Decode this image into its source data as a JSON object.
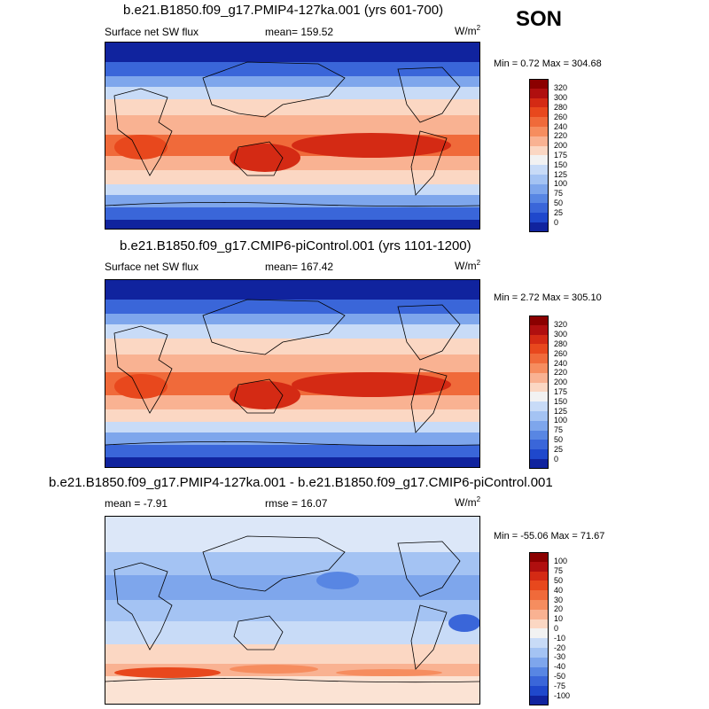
{
  "season": "SON",
  "panels": [
    {
      "title": "b.e21.B1850.f09_g17.PMIP4-127ka.001 (yrs 601-700)",
      "left_label": "Surface net SW flux",
      "center_label": "mean=  159.52",
      "units": "W/m",
      "units_sup": "2",
      "minmax": "Min =   0.72 Max = 304.68",
      "labels": [
        "320",
        "300",
        "280",
        "260",
        "240",
        "220",
        "200",
        "175",
        "150",
        "125",
        "100",
        "75",
        "50",
        "25",
        "0"
      ],
      "colors": [
        "#8b0000",
        "#b00f0f",
        "#d42a14",
        "#e8481d",
        "#f06a3a",
        "#f68d5f",
        "#f9b292",
        "#fbd7c3",
        "#f2f2f2",
        "#c8dbf7",
        "#a4c3f3",
        "#7ea6ec",
        "#5886e3",
        "#3a66d9",
        "#1f48cc",
        "#10239e"
      ]
    },
    {
      "title": "b.e21.B1850.f09_g17.CMIP6-piControl.001 (yrs 1101-1200)",
      "left_label": "Surface net SW flux",
      "center_label": "mean=  167.42",
      "units": "W/m",
      "units_sup": "2",
      "minmax": "Min =   2.72 Max = 305.10",
      "labels": [
        "320",
        "300",
        "280",
        "260",
        "240",
        "220",
        "200",
        "175",
        "150",
        "125",
        "100",
        "75",
        "50",
        "25",
        "0"
      ],
      "colors": [
        "#8b0000",
        "#b00f0f",
        "#d42a14",
        "#e8481d",
        "#f06a3a",
        "#f68d5f",
        "#f9b292",
        "#fbd7c3",
        "#f2f2f2",
        "#c8dbf7",
        "#a4c3f3",
        "#7ea6ec",
        "#5886e3",
        "#3a66d9",
        "#1f48cc",
        "#10239e"
      ]
    },
    {
      "title": "b.e21.B1850.f09_g17.PMIP4-127ka.001 - b.e21.B1850.f09_g17.CMIP6-piControl.001",
      "left_label": "mean =  -7.91",
      "center_label": "rmse =  16.07",
      "units": "W/m",
      "units_sup": "2",
      "minmax": "Min = -55.06 Max =  71.67",
      "labels": [
        "100",
        "75",
        "50",
        "40",
        "30",
        "20",
        "10",
        "0",
        "-10",
        "-20",
        "-30",
        "-40",
        "-50",
        "-75",
        "-100"
      ],
      "colors": [
        "#8b0000",
        "#b00f0f",
        "#d42a14",
        "#e8481d",
        "#f06a3a",
        "#f68d5f",
        "#f9b292",
        "#fbd7c3",
        "#f2f2f2",
        "#c8dbf7",
        "#a4c3f3",
        "#7ea6ec",
        "#5886e3",
        "#3a66d9",
        "#1f48cc",
        "#10239e"
      ]
    }
  ]
}
